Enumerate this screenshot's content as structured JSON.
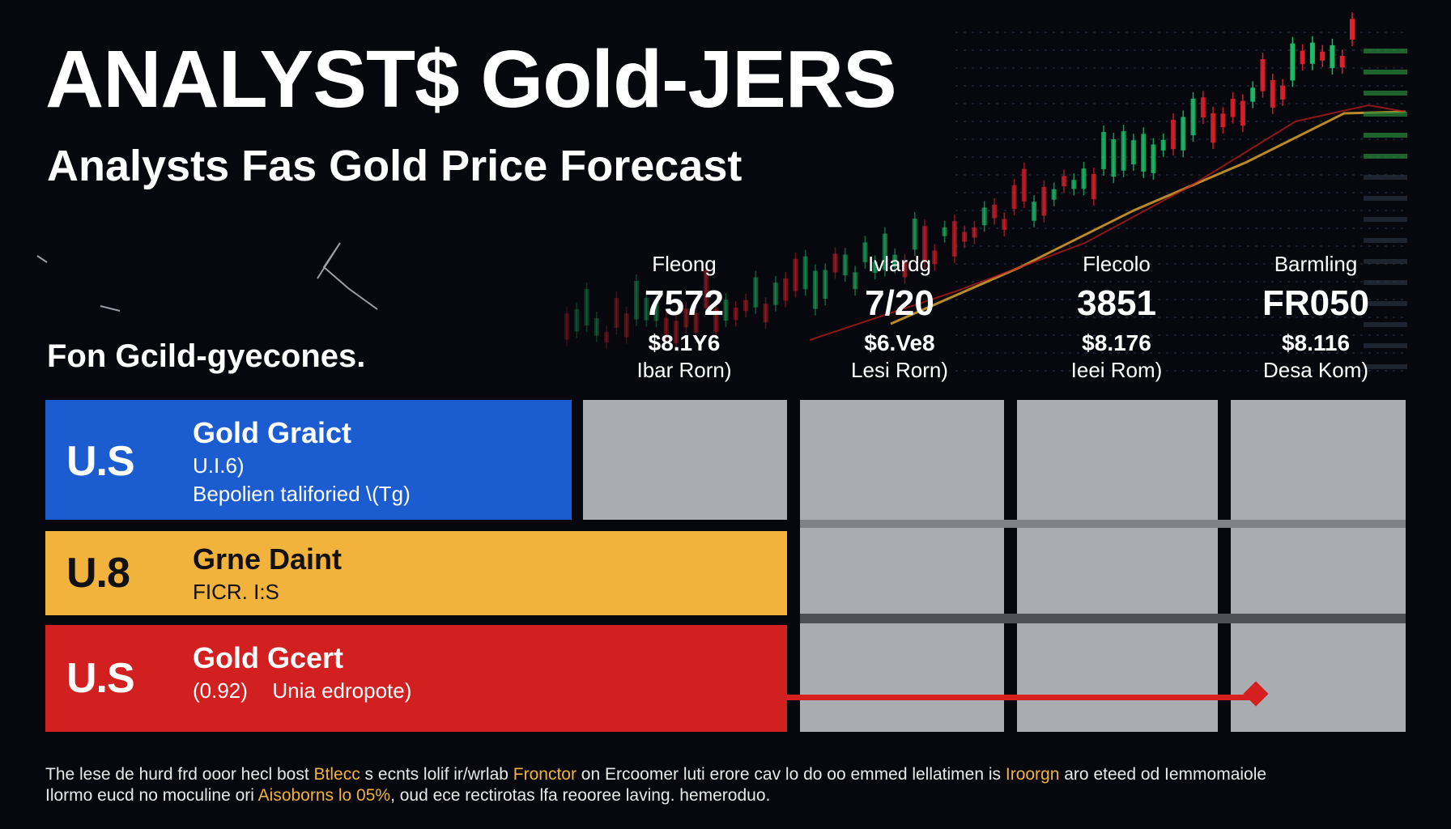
{
  "title": "ANALYST$ Gold-JERS",
  "subtitle": "Analysts Fas Gold Price Forecast",
  "section_label": "Fon Gcild-gyecones.",
  "columns": [
    {
      "name": "Fleong",
      "big": "7572",
      "price": "$8.1Y6",
      "note": "Ibar Rorn)"
    },
    {
      "name": "Ivlardg",
      "big": "7/20",
      "price": "$6.Ve8",
      "note": "Lesi Rorn)"
    },
    {
      "name": "Flecolo",
      "big": "3851",
      "price": "$8.176",
      "note": "Ieei Rom)"
    },
    {
      "name": "Barmling",
      "big": "FR050",
      "price": "$8.116",
      "note": "Desa Kom)"
    }
  ],
  "rows": [
    {
      "code": "U.S",
      "name": "Gold Graict",
      "line1": "U.I.6)",
      "line2": "Bepolien taliforied \\(Tg)",
      "color": "#1c5cd1",
      "text_color": "#ffffff"
    },
    {
      "code": "U.8",
      "name": "Grne Daint",
      "line1": "FICR. I:S",
      "line2": "",
      "color": "#f1b33c",
      "text_color": "#111111"
    },
    {
      "code": "U.S",
      "name": "Gold Gcert",
      "line1": "(0.92)",
      "line2": "Unia edropote)",
      "color": "#d21f1f",
      "text_color": "#ffffff"
    }
  ],
  "footnote": {
    "part1": "The lese de hurd frd ooor hecl bost ",
    "hl1": "Btlecc",
    "part2": " s ecnts lolif ir/wrlab ",
    "hl2": "Fronctor",
    "part3": " on Ercoomer luti erore cav lo do oo emmed lellatimen is ",
    "hl3": "Iroorgn",
    "part4": " aro eteed od Iemmomaiole",
    "part5": "Ilormo eucd no moculine ori ",
    "hl4": "Aisoborns lo 05%",
    "part6": ", oud ece rectirotas lfa reooree laving. hemeroduo."
  },
  "colors": {
    "accent_blue": "#1c5cd1",
    "accent_yellow": "#f1b33c",
    "accent_red": "#d21f1f",
    "cell_gray": "#a9adb1"
  }
}
